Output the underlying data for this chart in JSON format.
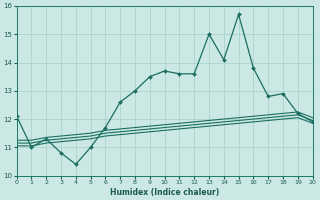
{
  "xlabel": "Humidex (Indice chaleur)",
  "ylabel": "",
  "bg_color": "#cce8e4",
  "grid_color": "#aad4cc",
  "line_color": "#1a6e62",
  "xlim": [
    0,
    20
  ],
  "ylim": [
    10,
    16
  ],
  "yticks": [
    10,
    11,
    12,
    13,
    14,
    15,
    16
  ],
  "xticks": [
    0,
    1,
    2,
    3,
    4,
    5,
    6,
    7,
    8,
    9,
    10,
    11,
    12,
    13,
    14,
    15,
    16,
    17,
    18,
    19,
    20
  ],
  "series1_x": [
    0,
    1,
    2,
    3,
    4,
    5,
    6,
    7,
    8,
    9,
    10,
    11,
    12,
    13,
    14,
    15,
    16,
    17,
    18,
    19,
    20
  ],
  "series1_y": [
    12.1,
    11.0,
    11.3,
    10.8,
    10.4,
    11.0,
    11.7,
    12.6,
    13.0,
    13.5,
    13.7,
    13.6,
    13.6,
    15.0,
    14.1,
    15.7,
    13.8,
    12.8,
    12.9,
    12.2,
    11.9
  ],
  "series2_y": [
    11.05,
    11.05,
    11.15,
    11.2,
    11.25,
    11.3,
    11.4,
    11.45,
    11.5,
    11.55,
    11.6,
    11.65,
    11.7,
    11.75,
    11.8,
    11.85,
    11.9,
    11.95,
    12.0,
    12.05,
    11.85
  ],
  "series3_y": [
    11.15,
    11.15,
    11.25,
    11.3,
    11.35,
    11.4,
    11.5,
    11.55,
    11.6,
    11.65,
    11.7,
    11.75,
    11.8,
    11.85,
    11.9,
    11.95,
    12.0,
    12.05,
    12.1,
    12.15,
    11.95
  ],
  "series4_y": [
    11.25,
    11.25,
    11.35,
    11.4,
    11.45,
    11.5,
    11.6,
    11.65,
    11.7,
    11.75,
    11.8,
    11.85,
    11.9,
    11.95,
    12.0,
    12.05,
    12.1,
    12.15,
    12.2,
    12.25,
    12.05
  ]
}
